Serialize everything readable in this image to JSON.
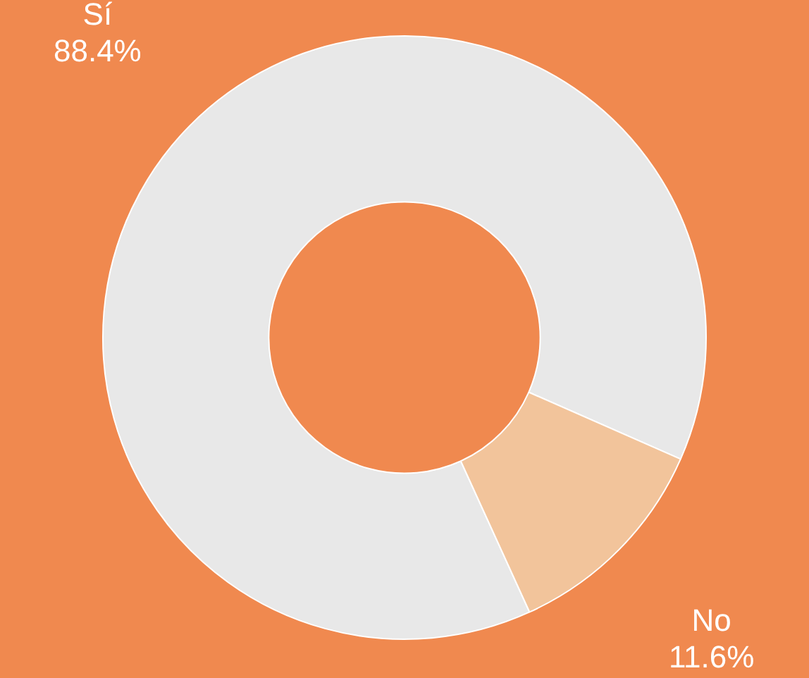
{
  "chart_data": {
    "type": "donut",
    "categories": [
      "Sí",
      "No"
    ],
    "values": [
      88.4,
      11.6
    ],
    "value_labels": [
      "88.4%",
      "11.6%"
    ],
    "colors": [
      "#e8e8e8",
      "#f2c49b"
    ]
  }
}
